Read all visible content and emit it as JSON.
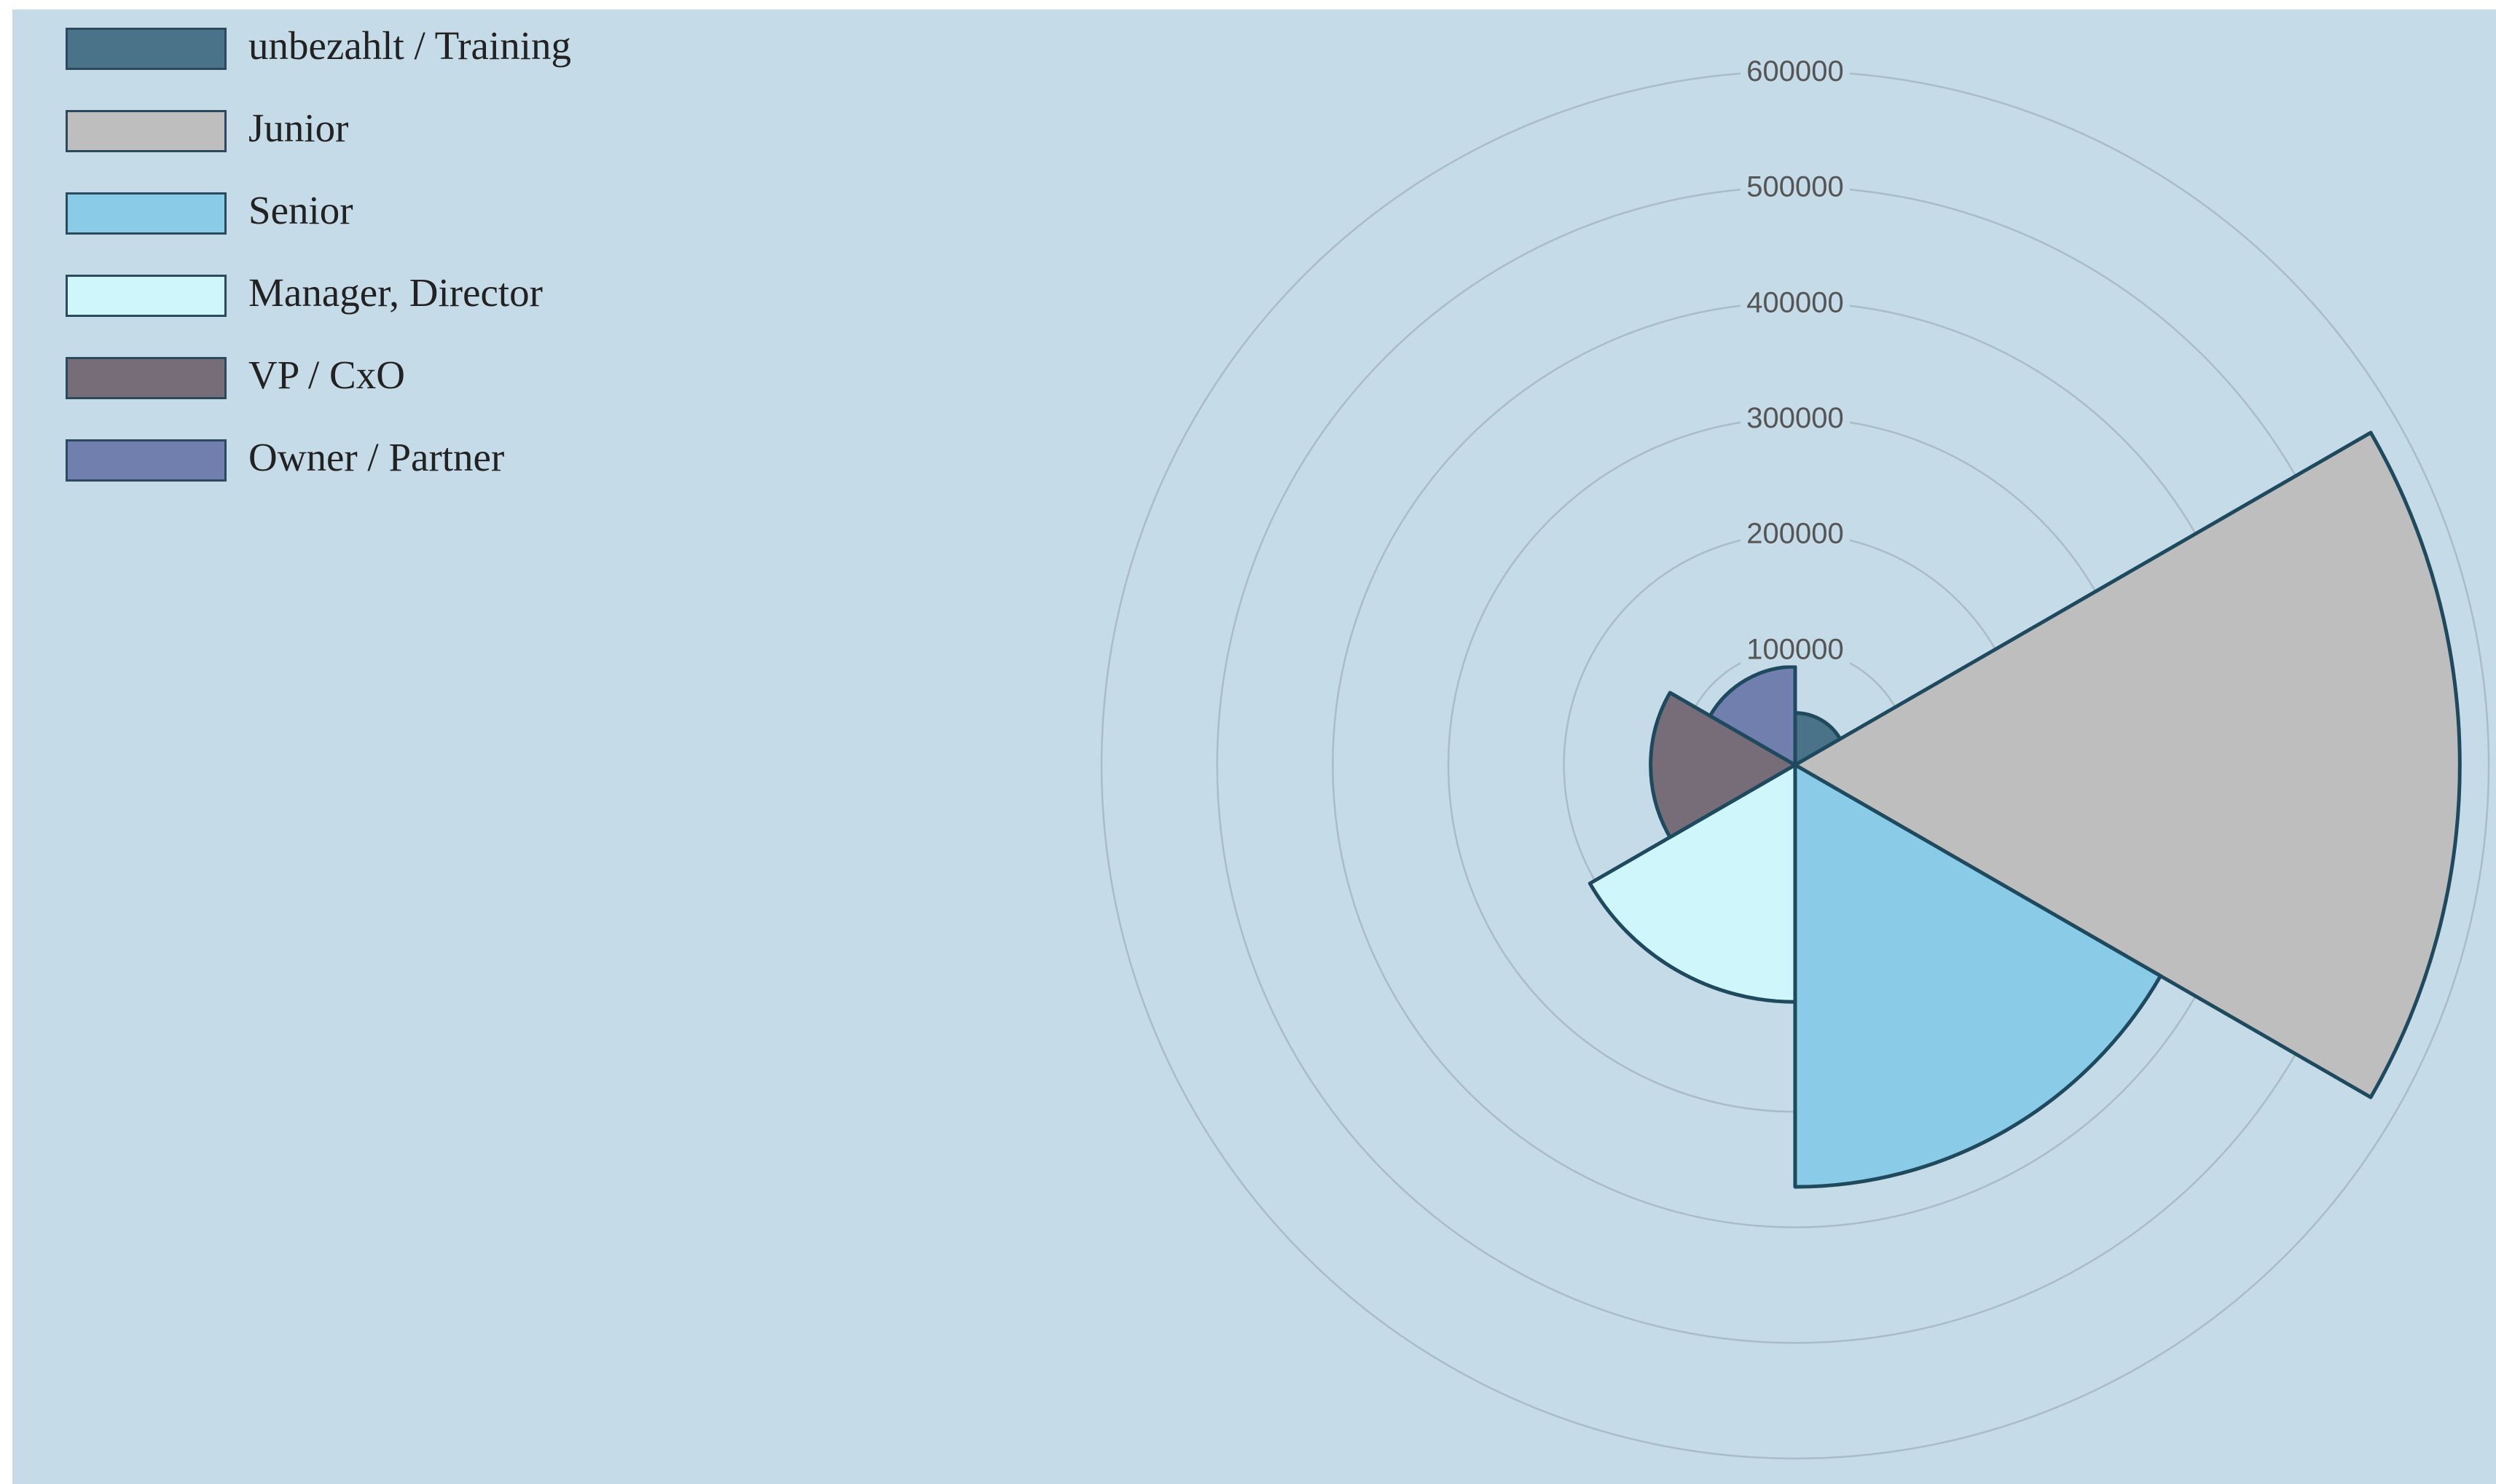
{
  "chart_data": {
    "type": "polar-area",
    "title": "",
    "legend_position": "top-left",
    "grid": true,
    "rlim": [
      0,
      600000
    ],
    "r_ticks": [
      100000,
      200000,
      300000,
      400000,
      500000,
      600000
    ],
    "r_tick_labels": [
      "100000",
      "200000",
      "300000",
      "400000",
      "500000",
      "600000"
    ],
    "categories": [
      "unbezahlt / Training",
      "Junior",
      "Senior",
      "Manager, Director",
      "VP / CxO",
      "Owner / Partner"
    ],
    "values": [
      45000,
      575000,
      365000,
      205000,
      125000,
      85000
    ],
    "colors": [
      "#4a7289",
      "#bebebe",
      "#8acbe8",
      "#cff6fb",
      "#776d78",
      "#717faf"
    ],
    "border_color": "#1f4a5e",
    "grid_color": "#a9bcc7",
    "background_color": "#c5dbe7"
  }
}
